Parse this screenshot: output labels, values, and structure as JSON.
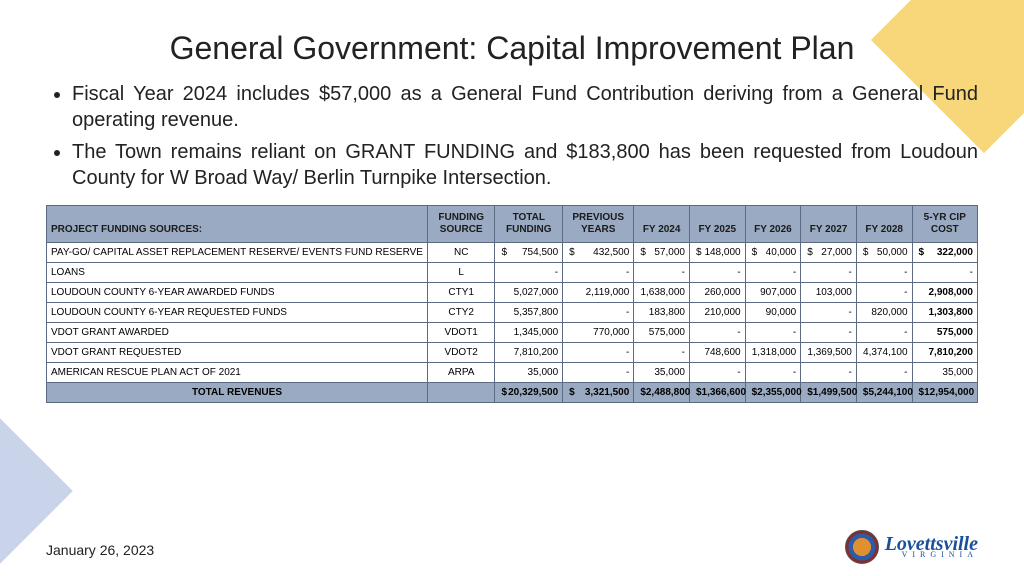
{
  "title": "General Government: Capital Improvement Plan",
  "bullets": [
    "Fiscal Year 2024 includes $57,000 as a General Fund Contribution deriving from a General Fund operating revenue.",
    "The Town remains reliant on GRANT FUNDING and $183,800 has been requested from Loudoun County for W Broad Way/ Berlin Turnpike Intersection."
  ],
  "table": {
    "headers": [
      "PROJECT FUNDING SOURCES:",
      "FUNDING SOURCE",
      "TOTAL FUNDING",
      "PREVIOUS YEARS",
      "FY 2024",
      "FY 2025",
      "FY 2026",
      "FY 2027",
      "FY 2028",
      "5-YR CIP COST"
    ],
    "rows": [
      {
        "name": "PAY-GO/ CAPITAL ASSET REPLACEMENT RESERVE/ EVENTS FUND RESERVE",
        "src": "NC",
        "cells": [
          "$   754,500",
          "$   432,500",
          "$   57,000",
          "$   148,000",
          "$   40,000",
          "$   27,000",
          "$   50,000",
          "$   322,000"
        ],
        "bold_last": true,
        "show_dollar": true
      },
      {
        "name": "LOANS",
        "src": "L",
        "cells": [
          "-",
          "-",
          "-",
          "-",
          "-",
          "-",
          "-",
          "-"
        ]
      },
      {
        "name": "LOUDOUN COUNTY 6-YEAR AWARDED FUNDS",
        "src": "CTY1",
        "cells": [
          "5,027,000",
          "2,119,000",
          "1,638,000",
          "260,000",
          "907,000",
          "103,000",
          "-",
          "2,908,000"
        ],
        "bold_last": true
      },
      {
        "name": "LOUDOUN COUNTY 6-YEAR REQUESTED FUNDS",
        "src": "CTY2",
        "cells": [
          "5,357,800",
          "-",
          "183,800",
          "210,000",
          "90,000",
          "-",
          "820,000",
          "1,303,800"
        ],
        "bold_last": true
      },
      {
        "name": "VDOT GRANT AWARDED",
        "src": "VDOT1",
        "cells": [
          "1,345,000",
          "770,000",
          "575,000",
          "-",
          "-",
          "-",
          "-",
          "575,000"
        ],
        "bold_last": true
      },
      {
        "name": "VDOT GRANT REQUESTED",
        "src": "VDOT2",
        "cells": [
          "7,810,200",
          "-",
          "-",
          "748,600",
          "1,318,000",
          "1,369,500",
          "4,374,100",
          "7,810,200"
        ],
        "bold_last": true
      },
      {
        "name": "AMERICAN RESCUE PLAN ACT OF 2021",
        "src": "ARPA",
        "cells": [
          "35,000",
          "-",
          "35,000",
          "-",
          "-",
          "-",
          "-",
          "35,000"
        ]
      }
    ],
    "total": {
      "name": "TOTAL REVENUES",
      "src": "",
      "cells": [
        "$   20,329,500",
        "$   3,321,500",
        "$   2,488,800",
        "$   1,366,600",
        "$   2,355,000",
        "$   1,499,500",
        "$   5,244,100",
        "$   12,954,000"
      ]
    }
  },
  "footer_date": "January 26, 2023",
  "logo": {
    "main": "Lovettsville",
    "sub": "VIRGINIA"
  },
  "colors": {
    "header_bg": "#9aaac2",
    "border": "#5b6b82",
    "accent_yellow": "#f7d77a",
    "accent_blue": "#c9d4ea"
  }
}
